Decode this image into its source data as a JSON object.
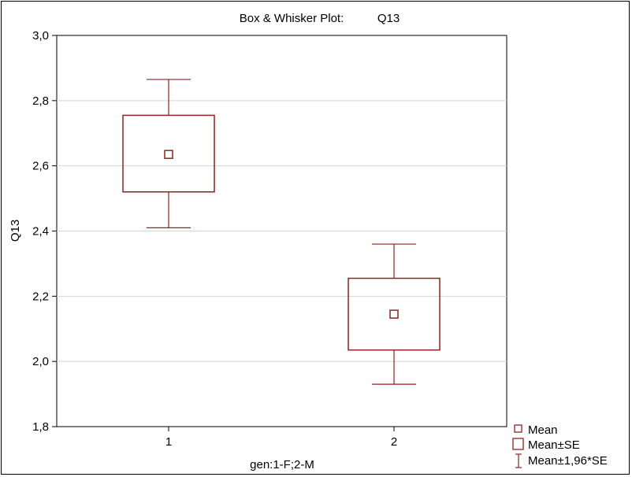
{
  "chart_data": {
    "type": "box",
    "title": "Box & Whisker Plot:",
    "variable": "Q13",
    "xlabel": "gen:1-F;2-M",
    "ylabel": "Q13",
    "categories": [
      "1",
      "2"
    ],
    "ylim": [
      1.8,
      3.0
    ],
    "yticks": [
      "1,8",
      "2,0",
      "2,2",
      "2,4",
      "2,6",
      "2,8",
      "3,0"
    ],
    "ytick_values": [
      1.8,
      2.0,
      2.2,
      2.4,
      2.6,
      2.8,
      3.0
    ],
    "grid": true,
    "legend_position": "bottom-right",
    "legend": [
      "Mean",
      "Mean±SE",
      "Mean±1,96*SE"
    ],
    "color": "#8b2323",
    "boxes": [
      {
        "category": "1",
        "mean": 2.635,
        "se_low": 2.52,
        "se_high": 2.755,
        "ci_low": 2.41,
        "ci_high": 2.865
      },
      {
        "category": "2",
        "mean": 2.145,
        "se_low": 2.035,
        "se_high": 2.255,
        "ci_low": 1.93,
        "ci_high": 2.36
      }
    ]
  }
}
